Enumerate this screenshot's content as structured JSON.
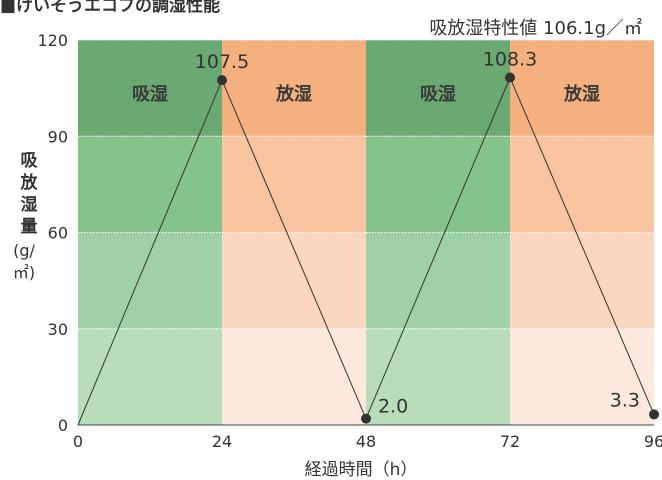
{
  "header": {
    "title": "■けいそうエコフの調湿性能",
    "subtitle": "吸放湿特性値 106.1g／㎡"
  },
  "colors": {
    "absorb_band_1": "#b9dcbc",
    "absorb_band_2": "#9fd0a6",
    "absorb_band_3": "#85c38d",
    "absorb_band_4": "#6aa972",
    "release_band_1": "#fde8dd",
    "release_band_2": "#fcd7bf",
    "release_band_3": "#f9c49f",
    "release_band_4": "#f5b080",
    "line": "#333333",
    "marker": "#333333"
  },
  "chart_data": {
    "type": "line",
    "title": "■けいそうエコフの調湿性能",
    "subtitle": "吸放湿特性値 106.1g／㎡",
    "xlabel": "経過時間（h）",
    "ylabel": "吸放湿量",
    "yunit": "(g/㎡)",
    "xlim": [
      0,
      96
    ],
    "ylim": [
      0,
      120
    ],
    "xticks": [
      0,
      24,
      48,
      72,
      96
    ],
    "yticks": [
      0,
      30,
      60,
      90,
      120
    ],
    "grid": true,
    "phases": [
      {
        "label": "吸湿",
        "x_start": 0,
        "x_end": 24,
        "kind": "absorb"
      },
      {
        "label": "放湿",
        "x_start": 24,
        "x_end": 48,
        "kind": "release"
      },
      {
        "label": "吸湿",
        "x_start": 48,
        "x_end": 72,
        "kind": "absorb"
      },
      {
        "label": "放湿",
        "x_start": 72,
        "x_end": 96,
        "kind": "release"
      }
    ],
    "series": [
      {
        "points": [
          {
            "x": 0,
            "y": 0
          },
          {
            "x": 24,
            "y": 107.5,
            "label": "107.5"
          },
          {
            "x": 48,
            "y": 2.0,
            "label": "2.0"
          },
          {
            "x": 72,
            "y": 108.3,
            "label": "108.3"
          },
          {
            "x": 96,
            "y": 3.3,
            "label": "3.3"
          }
        ]
      }
    ]
  },
  "ylabel_chars": "吸放湿量"
}
